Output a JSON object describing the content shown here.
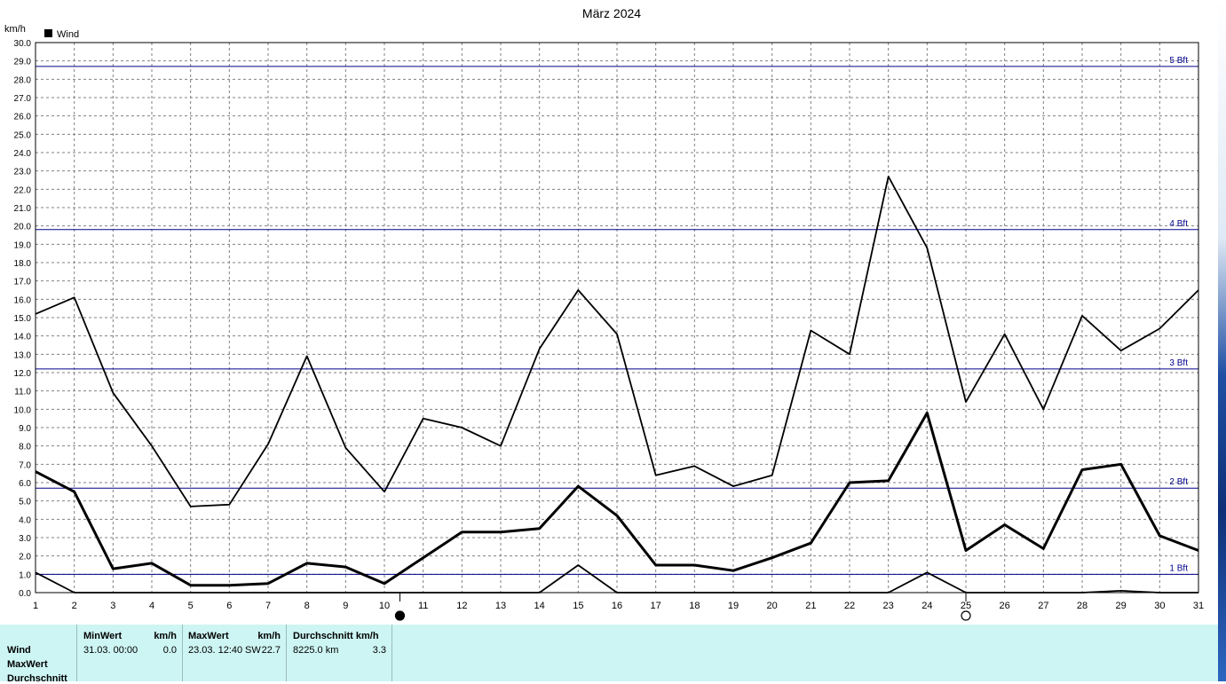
{
  "chart_data": {
    "type": "line",
    "title": "März 2024",
    "ylabel": "km/h",
    "ylim": [
      0,
      30
    ],
    "y_ticks": [
      "0.0",
      "1.0",
      "2.0",
      "3.0",
      "4.0",
      "5.0",
      "6.0",
      "7.0",
      "8.0",
      "9.0",
      "10.0",
      "11.0",
      "12.0",
      "13.0",
      "14.0",
      "15.0",
      "16.0",
      "17.0",
      "18.0",
      "19.0",
      "20.0",
      "21.0",
      "22.0",
      "23.0",
      "24.0",
      "25.0",
      "26.0",
      "27.0",
      "28.0",
      "29.0",
      "30.0"
    ],
    "x": [
      "1",
      "2",
      "3",
      "4",
      "5",
      "6",
      "7",
      "8",
      "9",
      "10",
      "11",
      "12",
      "13",
      "14",
      "15",
      "16",
      "17",
      "18",
      "19",
      "20",
      "21",
      "22",
      "23",
      "24",
      "25",
      "26",
      "27",
      "28",
      "29",
      "30",
      "31"
    ],
    "grid": true,
    "legend": {
      "position": "top-left",
      "entries": [
        {
          "label": "Wind",
          "color": "#000000"
        }
      ]
    },
    "series": [
      {
        "name": "Wind",
        "role": "max",
        "color": "#000000",
        "values": [
          15.2,
          16.1,
          10.9,
          8.0,
          4.7,
          4.8,
          8.1,
          12.9,
          7.9,
          5.5,
          9.5,
          9.0,
          8.0,
          13.3,
          16.5,
          14.1,
          6.4,
          6.9,
          5.8,
          6.4,
          14.3,
          13.0,
          22.7,
          18.8,
          10.4,
          14.1,
          10.0,
          15.1,
          13.2,
          14.4,
          16.5
        ]
      },
      {
        "name": "Wind",
        "role": "average",
        "color": "#000000",
        "values": [
          6.6,
          5.5,
          1.3,
          1.6,
          0.4,
          0.4,
          0.5,
          1.6,
          1.4,
          0.5,
          1.9,
          3.3,
          3.3,
          3.5,
          5.8,
          4.2,
          1.5,
          1.5,
          1.2,
          1.9,
          2.7,
          6.0,
          6.1,
          9.8,
          2.3,
          3.7,
          2.4,
          6.7,
          7.0,
          3.1,
          2.3
        ]
      },
      {
        "name": "Wind",
        "role": "min",
        "color": "#000000",
        "values": [
          1.1,
          0.0,
          0.0,
          0.0,
          0.0,
          0.0,
          0.0,
          0.0,
          0.0,
          0.0,
          0.0,
          0.0,
          0.0,
          0.0,
          1.5,
          0.0,
          0.0,
          0.0,
          0.0,
          0.0,
          0.0,
          0.0,
          0.0,
          1.1,
          0.0,
          0.0,
          0.0,
          0.0,
          0.1,
          0.0,
          0.0
        ]
      }
    ],
    "reference_lines": [
      {
        "label": "1 Bft",
        "value": 1.0,
        "color": "#00008b"
      },
      {
        "label": "2 Bft",
        "value": 5.7,
        "color": "#00008b"
      },
      {
        "label": "3 Bft",
        "value": 12.2,
        "color": "#00008b"
      },
      {
        "label": "4 Bft",
        "value": 19.8,
        "color": "#00008b"
      },
      {
        "label": "5 Bft",
        "value": 28.7,
        "color": "#00008b"
      }
    ],
    "moon_phases": [
      {
        "icon": "new-moon-icon",
        "day": 10.4
      },
      {
        "icon": "full-moon-icon",
        "day": 25.0
      }
    ]
  },
  "stats": {
    "row_labels": [
      "Wind",
      "MaxWert",
      "Durchschnitt"
    ],
    "min": {
      "header": "MinWert",
      "unit": "km/h",
      "date": "31.03.  00:00",
      "value": "0.0"
    },
    "max": {
      "header": "MaxWert",
      "unit": "km/h",
      "date": "23.03.  12:40",
      "direction": "SW",
      "value": "22.7"
    },
    "avg": {
      "header": "Durchschnitt km/h",
      "distance": "8225.0 km",
      "value": "3.3"
    }
  }
}
